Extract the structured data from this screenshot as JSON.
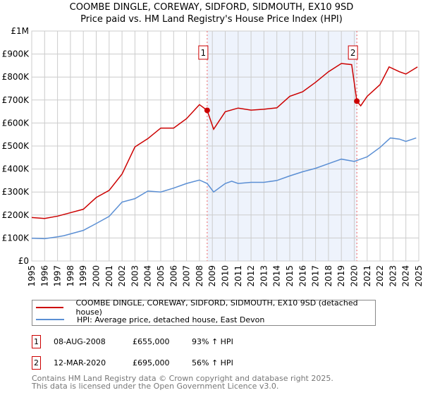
{
  "chart_data": {
    "type": "line",
    "title": "COOMBE DINGLE, COREWAY, SIDFORD, SIDMOUTH, EX10 9SD",
    "subtitle": "Price paid vs. HM Land Registry's House Price Index (HPI)",
    "xlim": [
      1995,
      2025
    ],
    "ylim": [
      0,
      1000000
    ],
    "yticks": [
      0,
      100000,
      200000,
      300000,
      400000,
      500000,
      600000,
      700000,
      800000,
      900000,
      1000000
    ],
    "ytick_labels": [
      "£0",
      "£100K",
      "£200K",
      "£300K",
      "£400K",
      "£500K",
      "£600K",
      "£700K",
      "£800K",
      "£900K",
      "£1M"
    ],
    "xtick_labels": [
      "1995",
      "1996",
      "1997",
      "1998",
      "1999",
      "2000",
      "2001",
      "2002",
      "2003",
      "2004",
      "2005",
      "2006",
      "2007",
      "2008",
      "2009",
      "2010",
      "2011",
      "2012",
      "2013",
      "2014",
      "2015",
      "2016",
      "2017",
      "2018",
      "2019",
      "2020",
      "2021",
      "2022",
      "2023",
      "2024",
      "2025"
    ],
    "grid": true,
    "legend_placement": "below",
    "series": [
      {
        "name": "COOMBE DINGLE, COREWAY, SIDFORD, SIDMOUTH, EX10 9SD (detached house)",
        "color": "#cc0000",
        "x": [
          1995,
          1996,
          1997,
          1998,
          1999,
          2000,
          2001,
          2002,
          2003,
          2004,
          2005,
          2006,
          2007,
          2008,
          2008.6,
          2009.1,
          2010,
          2011,
          2012,
          2013,
          2014,
          2015,
          2016,
          2017,
          2018,
          2019,
          2019.8,
          2020.2,
          2020.5,
          2021,
          2022,
          2022.7,
          2023.5,
          2024,
          2024.9
        ],
        "y": [
          189000,
          185000,
          195000,
          210000,
          225000,
          276000,
          307000,
          378000,
          496000,
          532000,
          578000,
          578000,
          619000,
          680000,
          655000,
          573000,
          649000,
          665000,
          656000,
          660000,
          666000,
          716000,
          736000,
          777000,
          823000,
          859000,
          854000,
          695000,
          675000,
          716000,
          767000,
          844000,
          823000,
          813000,
          844000
        ]
      },
      {
        "name": "HPI: Average price, detached house, East Devon",
        "color": "#5b8fd4",
        "x": [
          1995,
          1996,
          1997,
          1997.5,
          1999,
          2000,
          2001,
          2002,
          2003,
          2004,
          2005,
          2006,
          2007,
          2008,
          2008.6,
          2009.1,
          2010,
          2010.5,
          2011,
          2012,
          2013,
          2014,
          2015,
          2016,
          2017,
          2018,
          2019,
          2020,
          2021,
          2022,
          2022.8,
          2023.5,
          2024,
          2024.8
        ],
        "y": [
          99000,
          97000,
          105000,
          110000,
          133000,
          163000,
          194000,
          256000,
          271000,
          304000,
          300000,
          317000,
          337000,
          352000,
          337000,
          300000,
          337000,
          347000,
          337000,
          342000,
          342000,
          350000,
          370000,
          388000,
          403000,
          423000,
          443000,
          433000,
          453000,
          494000,
          535000,
          530000,
          520000,
          535000
        ]
      }
    ],
    "sales": [
      {
        "label": "1",
        "x": 2008.6,
        "y": 655000,
        "date": "08-AUG-2008",
        "price": "£655,000",
        "hpi": "93% ↑ HPI"
      },
      {
        "label": "2",
        "x": 2020.2,
        "y": 695000,
        "date": "12-MAR-2020",
        "price": "£695,000",
        "hpi": "56% ↑ HPI"
      }
    ],
    "shade_color": "#eef3fc"
  },
  "footer": {
    "line1": "Contains HM Land Registry data © Crown copyright and database right 2025.",
    "line2": "This data is licensed under the Open Government Licence v3.0."
  }
}
